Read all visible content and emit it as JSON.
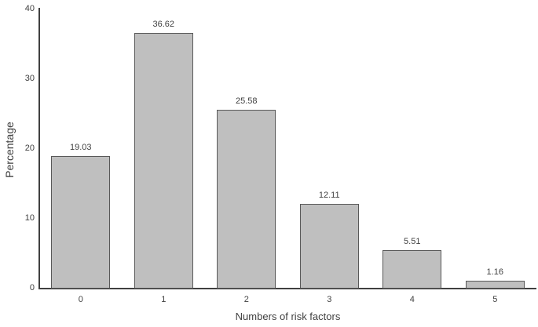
{
  "chart_data": {
    "type": "bar",
    "title": "",
    "xlabel": "Numbers of risk factors",
    "ylabel": "Percentage",
    "categories": [
      "0",
      "1",
      "2",
      "3",
      "4",
      "5"
    ],
    "values": [
      19.03,
      36.62,
      25.58,
      12.11,
      5.51,
      1.16
    ],
    "value_labels": [
      "19.03",
      "36.62",
      "25.58",
      "12.11",
      "5.51",
      "1.16"
    ],
    "ylim": [
      0,
      40
    ],
    "yticks": [
      0,
      10,
      20,
      30,
      40
    ],
    "grid": false,
    "legend": "none",
    "data_labels": "above-bars",
    "colors": {
      "bar_fill": "#bfbfbf",
      "bar_border": "#595959",
      "axis": "#404040",
      "text": "#404040",
      "background": "#ffffff"
    }
  }
}
